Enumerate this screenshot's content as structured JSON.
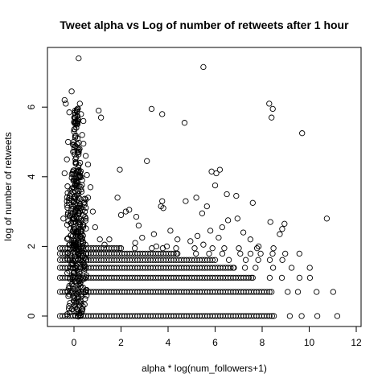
{
  "chart_data": {
    "type": "scatter",
    "title": "Tweet alpha vs Log of number of retweets after 1 hour",
    "xlabel": "alpha * log(num_followers+1)",
    "ylabel": "log of number of retweets",
    "xlim": [
      -0.5,
      12
    ],
    "ylim": [
      0,
      7.4
    ],
    "xticks": [
      0,
      2,
      4,
      6,
      8,
      10,
      12
    ],
    "yticks": [
      0,
      2,
      4,
      6
    ],
    "grid": false,
    "marker": "open-circle",
    "points": [
      [
        0.2,
        7.4
      ],
      [
        5.5,
        7.15
      ],
      [
        -0.4,
        6.2
      ],
      [
        -0.35,
        6.1
      ],
      [
        -0.1,
        6.45
      ],
      [
        0.25,
        6.1
      ],
      [
        0.15,
        5.95
      ],
      [
        0.05,
        5.9
      ],
      [
        -0.2,
        5.85
      ],
      [
        0.3,
        5.8
      ],
      [
        0.4,
        5.6
      ],
      [
        1.05,
        5.9
      ],
      [
        1.15,
        5.7
      ],
      [
        3.3,
        5.95
      ],
      [
        3.75,
        5.8
      ],
      [
        4.7,
        5.55
      ],
      [
        8.3,
        6.1
      ],
      [
        8.45,
        5.95
      ],
      [
        8.4,
        5.7
      ],
      [
        9.7,
        5.25
      ],
      [
        0.0,
        5.3
      ],
      [
        0.15,
        5.1
      ],
      [
        0.35,
        5.2
      ],
      [
        -0.25,
        5.0
      ],
      [
        0.4,
        4.95
      ],
      [
        0.5,
        4.6
      ],
      [
        -0.3,
        4.5
      ],
      [
        0.6,
        4.35
      ],
      [
        -0.4,
        4.1
      ],
      [
        0.55,
        4.05
      ],
      [
        1.95,
        4.2
      ],
      [
        3.1,
        4.45
      ],
      [
        5.85,
        4.15
      ],
      [
        6.05,
        4.1
      ],
      [
        6.2,
        4.2
      ],
      [
        6.0,
        3.75
      ],
      [
        1.85,
        3.4
      ],
      [
        2.0,
        2.9
      ],
      [
        2.2,
        3.0
      ],
      [
        2.35,
        3.05
      ],
      [
        2.65,
        2.85
      ],
      [
        3.75,
        3.3
      ],
      [
        3.8,
        3.1
      ],
      [
        3.7,
        3.15
      ],
      [
        4.75,
        3.3
      ],
      [
        5.2,
        3.4
      ],
      [
        5.65,
        3.15
      ],
      [
        6.5,
        3.5
      ],
      [
        6.9,
        3.45
      ],
      [
        7.6,
        3.25
      ],
      [
        5.45,
        2.95
      ],
      [
        6.55,
        2.75
      ],
      [
        6.95,
        2.8
      ],
      [
        6.3,
        2.55
      ],
      [
        8.35,
        2.7
      ],
      [
        8.85,
        2.5
      ],
      [
        8.95,
        2.65
      ],
      [
        8.75,
        2.35
      ],
      [
        10.75,
        2.8
      ],
      [
        0.35,
        3.9
      ],
      [
        0.7,
        3.7
      ],
      [
        0.6,
        3.4
      ],
      [
        0.8,
        3.0
      ],
      [
        0.9,
        2.55
      ],
      [
        1.1,
        2.2
      ],
      [
        1.3,
        2.05
      ],
      [
        1.5,
        2.2
      ],
      [
        2.6,
        2.1
      ],
      [
        2.9,
        2.25
      ],
      [
        3.4,
        2.35
      ],
      [
        3.5,
        2.0
      ],
      [
        4.1,
        2.45
      ],
      [
        4.4,
        2.2
      ],
      [
        4.95,
        2.15
      ],
      [
        5.25,
        2.3
      ],
      [
        5.5,
        2.05
      ],
      [
        5.8,
        2.45
      ],
      [
        6.15,
        2.25
      ],
      [
        7.2,
        2.4
      ],
      [
        7.5,
        2.2
      ],
      [
        7.85,
        2.0
      ],
      [
        3.95,
        2.0
      ],
      [
        2.75,
        2.6
      ],
      [
        -0.3,
        3.3
      ],
      [
        -0.45,
        2.8
      ],
      [
        0.45,
        3.2
      ],
      [
        0.5,
        2.8
      ],
      [
        -0.15,
        3.6
      ]
    ],
    "dense_columns": [
      {
        "x": 0.15,
        "y_from": 0.0,
        "y_to": 4.2
      },
      {
        "x": -0.1,
        "y_from": 0.0,
        "y_to": 3.8
      },
      {
        "x": 0.35,
        "y_from": 0.0,
        "y_to": 3.4
      }
    ],
    "y_bands": [
      {
        "y": 0.0,
        "x_from": -0.6,
        "x_to": 8.5,
        "sparse_to": 11.8
      },
      {
        "y": 0.693,
        "x_from": -0.6,
        "x_to": 8.4,
        "sparse_to": 11.3
      },
      {
        "y": 1.099,
        "x_from": -0.6,
        "x_to": 7.6,
        "sparse_to": 10.5
      },
      {
        "y": 1.386,
        "x_from": -0.6,
        "x_to": 6.8,
        "sparse_to": 10.4
      },
      {
        "y": 1.609,
        "x_from": -0.6,
        "x_to": 6.0,
        "sparse_to": 9.3
      },
      {
        "y": 1.792,
        "x_from": -0.6,
        "x_to": 4.4,
        "sparse_to": 9.6
      },
      {
        "y": 1.946,
        "x_from": -0.6,
        "x_to": 2.0,
        "sparse_to": 8.6
      }
    ]
  }
}
